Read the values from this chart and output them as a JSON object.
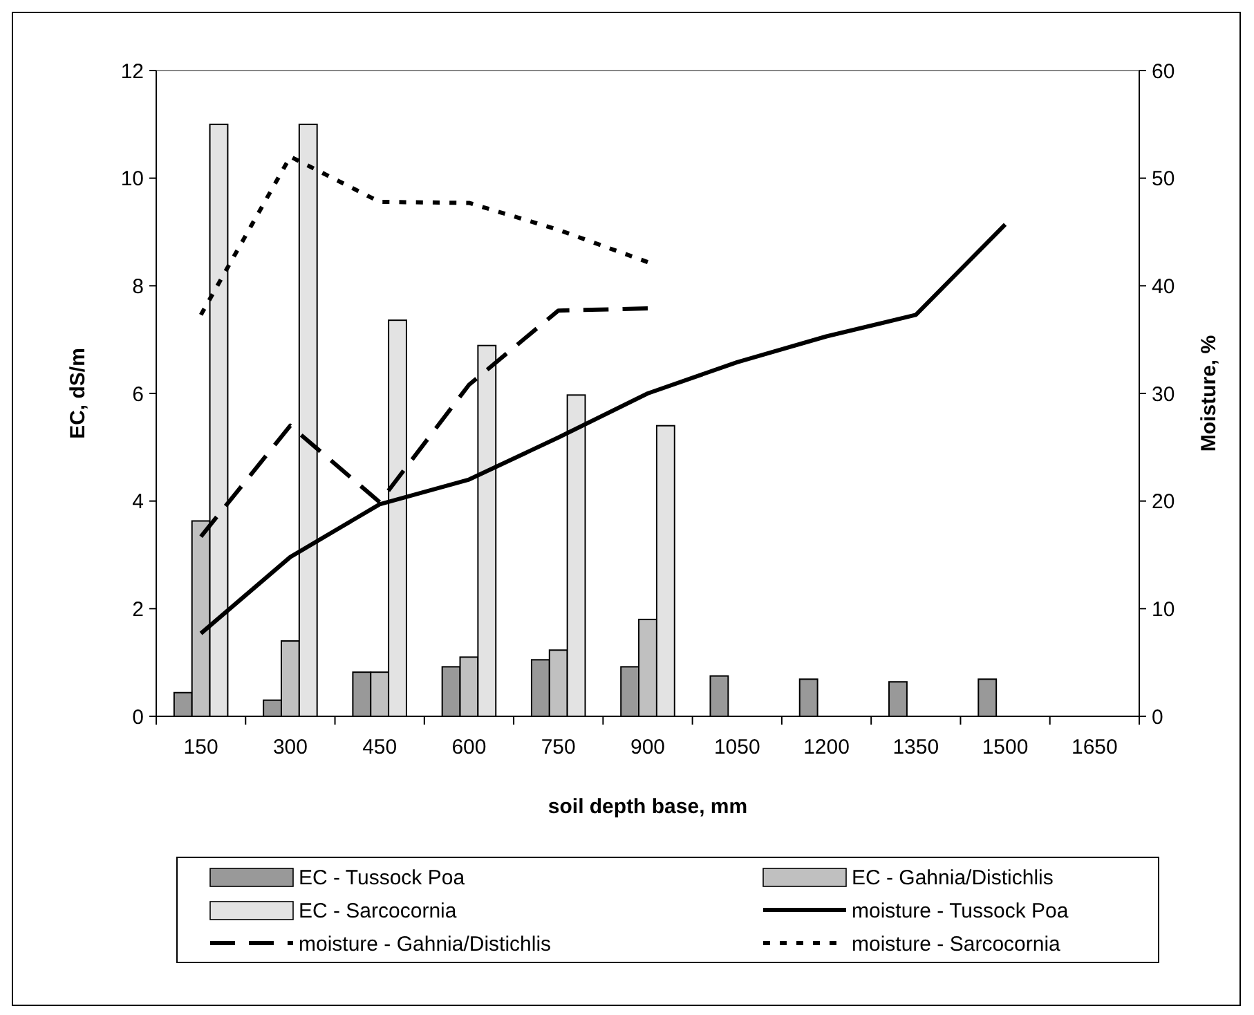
{
  "chart_data": {
    "type": "bar",
    "xlabel": "soil depth base, mm",
    "ylabel": "EC, dS/m",
    "y2label": "Moisture, %",
    "categories": [
      "150",
      "300",
      "450",
      "600",
      "750",
      "900",
      "1050",
      "1200",
      "1350",
      "1500",
      "1650"
    ],
    "ylim": [
      0,
      12
    ],
    "yticks": [
      0,
      2,
      4,
      6,
      8,
      10,
      12
    ],
    "y2lim": [
      0,
      60
    ],
    "y2ticks": [
      0,
      10,
      20,
      30,
      40,
      50,
      60
    ],
    "grid": false,
    "legend": "bottom",
    "series": [
      {
        "name": "EC - Tussock Poa",
        "type": "bar",
        "color": "#999999",
        "values": [
          0.44,
          0.3,
          0.82,
          0.92,
          1.05,
          0.92,
          0.75,
          0.69,
          0.64,
          0.69,
          null
        ]
      },
      {
        "name": "EC - Gahnia/Distichlis",
        "type": "bar",
        "color": "#c0c0c0",
        "values": [
          3.63,
          1.4,
          0.82,
          1.1,
          1.23,
          1.8,
          null,
          null,
          null,
          null,
          null
        ]
      },
      {
        "name": "EC - Sarcocornia",
        "type": "bar",
        "color": "#e3e3e3",
        "values": [
          11,
          11,
          7.36,
          6.89,
          5.97,
          5.4,
          null,
          null,
          null,
          null,
          null
        ]
      },
      {
        "name": "moisture - Tussock Poa",
        "type": "line",
        "axis": "y2",
        "color": "#000000",
        "line_style": "solid",
        "values": [
          7.7,
          14.8,
          19.7,
          22,
          25.9,
          30,
          32.9,
          35.3,
          37.3,
          45.7,
          null
        ]
      },
      {
        "name": "moisture - Gahnia/Distichlis",
        "type": "line",
        "axis": "y2",
        "color": "#000000",
        "line_style": "dashed",
        "values": [
          16.7,
          27,
          19.9,
          30.8,
          37.7,
          37.9,
          null,
          null,
          null,
          null,
          null
        ]
      },
      {
        "name": "moisture - Sarcocornia",
        "type": "line",
        "axis": "y2",
        "color": "#000000",
        "line_style": "dotted",
        "values": [
          37.3,
          52,
          47.8,
          47.7,
          45.2,
          42.2,
          null,
          null,
          null,
          null,
          null
        ]
      }
    ]
  }
}
